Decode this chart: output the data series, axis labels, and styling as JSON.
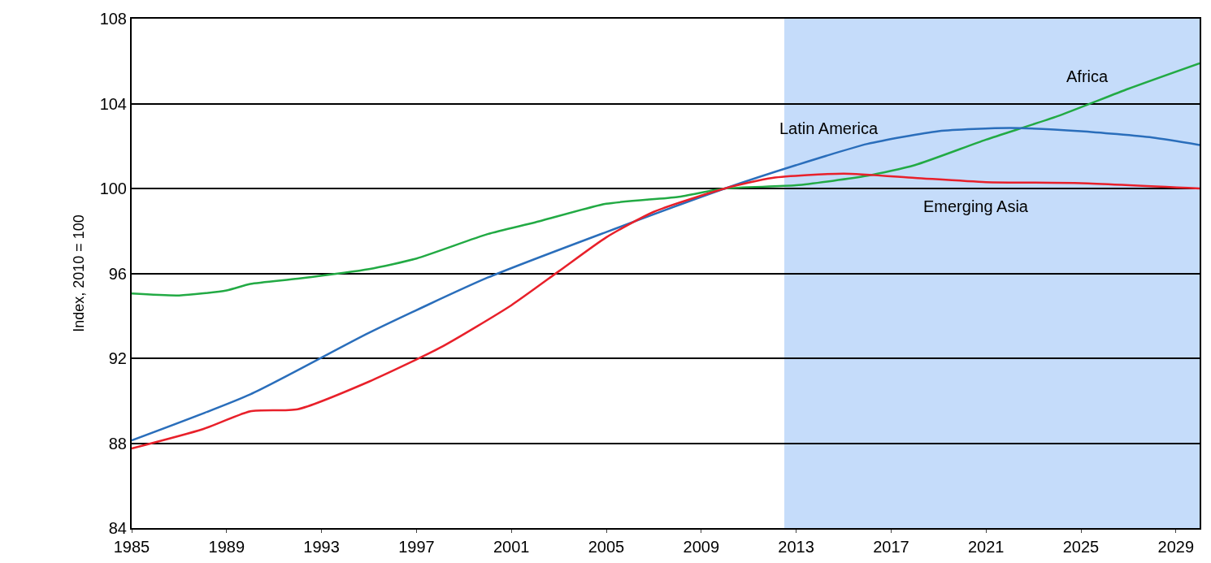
{
  "chart_data": {
    "type": "line",
    "ylabel": "Index, 2010 = 100",
    "xlim": [
      1985,
      2030
    ],
    "xticks": [
      1985,
      1989,
      1993,
      1997,
      2001,
      2005,
      2009,
      2013,
      2017,
      2021,
      2025,
      2029
    ],
    "ylim": [
      84,
      108
    ],
    "yticks": [
      84,
      88,
      92,
      96,
      100,
      104,
      108
    ],
    "grid": "y",
    "marker": "none",
    "line_style": "solid",
    "bands": [
      {
        "axis": "x",
        "from": 2012.5,
        "to": 2030,
        "color": "#c5dcfa"
      }
    ],
    "series": [
      {
        "color": "#22aa44",
        "x": [
          1985,
          1987,
          1989,
          1990,
          1992,
          1995,
          1997,
          2000,
          2002,
          2005,
          2008,
          2010,
          2013,
          2016,
          2018,
          2021,
          2024,
          2027,
          2030
        ],
        "values": [
          95.05,
          94.96,
          95.2,
          95.5,
          95.75,
          96.2,
          96.7,
          97.85,
          98.4,
          99.28,
          99.6,
          100,
          100.15,
          100.6,
          101.1,
          102.3,
          103.4,
          104.7,
          105.9
        ]
      },
      {
        "color": "#2a6ebb",
        "x": [
          1985,
          1990,
          1995,
          2000,
          2005,
          2010,
          2013,
          2016,
          2019,
          2022,
          2025,
          2028,
          2030
        ],
        "values": [
          88.13,
          90.3,
          93.2,
          95.8,
          97.95,
          100,
          101.1,
          102.1,
          102.7,
          102.85,
          102.7,
          102.4,
          102.05
        ]
      },
      {
        "color": "#e8202a",
        "x": [
          1985,
          1988,
          1990,
          1992,
          1995,
          1998,
          2001,
          2003,
          2005,
          2007,
          2010,
          2012,
          2015,
          2018,
          2021,
          2025,
          2030
        ],
        "values": [
          87.75,
          88.66,
          89.5,
          89.6,
          90.9,
          92.5,
          94.5,
          96.1,
          97.7,
          98.9,
          100,
          100.5,
          100.7,
          100.5,
          100.3,
          100.25,
          100
        ]
      }
    ],
    "annotations": [
      "Africa",
      "Latin America",
      "Emerging Asia"
    ]
  }
}
